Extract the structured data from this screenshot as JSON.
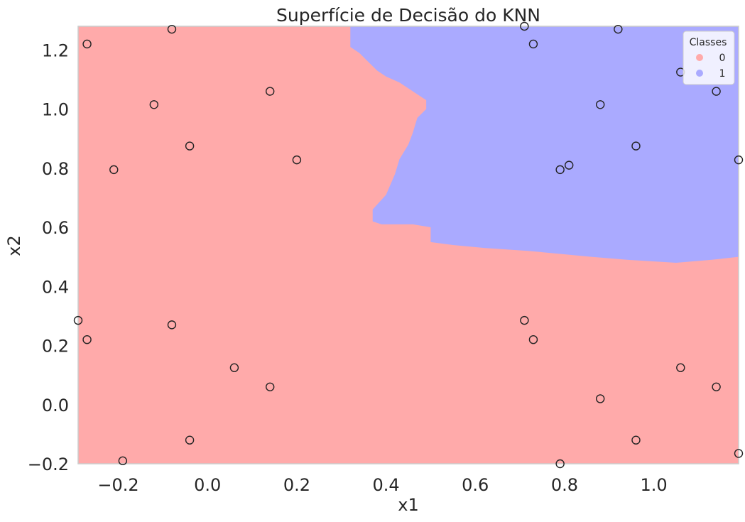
{
  "chart_data": {
    "type": "scatter",
    "title": "Superfície de Decisão do KNN",
    "xlabel": "x1",
    "ylabel": "x2",
    "xlim": [
      -0.29,
      1.19
    ],
    "ylim": [
      -0.2,
      1.28
    ],
    "x_ticks": [
      -0.2,
      0.0,
      0.2,
      0.4,
      0.6,
      0.8,
      1.0
    ],
    "x_tick_labels": [
      "−0.2",
      "0.0",
      "0.2",
      "0.4",
      "0.6",
      "0.8",
      "1.0"
    ],
    "y_ticks": [
      -0.2,
      0.0,
      0.2,
      0.4,
      0.6,
      0.8,
      1.0,
      1.2
    ],
    "y_tick_labels": [
      "−0.2",
      "0.0",
      "0.2",
      "0.4",
      "0.6",
      "0.8",
      "1.0",
      "1.2"
    ],
    "grid": false,
    "legend": {
      "title": "Classes",
      "position": "top-right",
      "entries": [
        {
          "label": "0",
          "color": "#ffaaaa"
        },
        {
          "label": "1",
          "color": "#aaaaff"
        }
      ]
    },
    "region_colors": {
      "class_0": "#ffaaaa",
      "class_1": "#aaaaff"
    },
    "decision_boundary": [
      [
        0.32,
        1.28
      ],
      [
        0.32,
        1.21
      ],
      [
        0.34,
        1.19
      ],
      [
        0.36,
        1.16
      ],
      [
        0.38,
        1.13
      ],
      [
        0.4,
        1.11
      ],
      [
        0.43,
        1.09
      ],
      [
        0.46,
        1.06
      ],
      [
        0.49,
        1.03
      ],
      [
        0.49,
        1.0
      ],
      [
        0.47,
        0.97
      ],
      [
        0.46,
        0.92
      ],
      [
        0.45,
        0.88
      ],
      [
        0.43,
        0.83
      ],
      [
        0.42,
        0.78
      ],
      [
        0.4,
        0.71
      ],
      [
        0.37,
        0.66
      ],
      [
        0.37,
        0.62
      ],
      [
        0.39,
        0.61
      ],
      [
        0.46,
        0.61
      ],
      [
        0.5,
        0.6
      ],
      [
        0.5,
        0.55
      ],
      [
        0.55,
        0.54
      ],
      [
        0.62,
        0.53
      ],
      [
        0.72,
        0.52
      ],
      [
        0.86,
        0.5
      ],
      [
        0.94,
        0.49
      ],
      [
        1.05,
        0.48
      ],
      [
        1.13,
        0.49
      ],
      [
        1.19,
        0.5
      ]
    ],
    "points": [
      {
        "x": -0.27,
        "y": 1.22
      },
      {
        "x": -0.08,
        "y": 1.27
      },
      {
        "x": 0.14,
        "y": 1.06
      },
      {
        "x": -0.12,
        "y": 1.015
      },
      {
        "x": -0.04,
        "y": 0.875
      },
      {
        "x": 0.2,
        "y": 0.828
      },
      {
        "x": -0.21,
        "y": 0.795
      },
      {
        "x": 0.71,
        "y": 1.28
      },
      {
        "x": 0.73,
        "y": 1.22
      },
      {
        "x": 0.92,
        "y": 1.27
      },
      {
        "x": 1.06,
        "y": 1.125
      },
      {
        "x": 1.14,
        "y": 1.06
      },
      {
        "x": 0.88,
        "y": 1.015
      },
      {
        "x": 0.96,
        "y": 0.875
      },
      {
        "x": 0.79,
        "y": 0.795
      },
      {
        "x": 0.81,
        "y": 0.81
      },
      {
        "x": 1.19,
        "y": 0.828
      },
      {
        "x": -0.29,
        "y": 0.285
      },
      {
        "x": -0.27,
        "y": 0.22
      },
      {
        "x": -0.08,
        "y": 0.27
      },
      {
        "x": 0.06,
        "y": 0.125
      },
      {
        "x": 0.14,
        "y": 0.06
      },
      {
        "x": -0.04,
        "y": -0.12
      },
      {
        "x": -0.19,
        "y": -0.19
      },
      {
        "x": 0.71,
        "y": 0.285
      },
      {
        "x": 0.73,
        "y": 0.22
      },
      {
        "x": 1.06,
        "y": 0.125
      },
      {
        "x": 1.14,
        "y": 0.06
      },
      {
        "x": 0.88,
        "y": 0.02
      },
      {
        "x": 0.96,
        "y": -0.12
      },
      {
        "x": 0.79,
        "y": -0.2
      },
      {
        "x": 1.19,
        "y": -0.165
      }
    ]
  }
}
